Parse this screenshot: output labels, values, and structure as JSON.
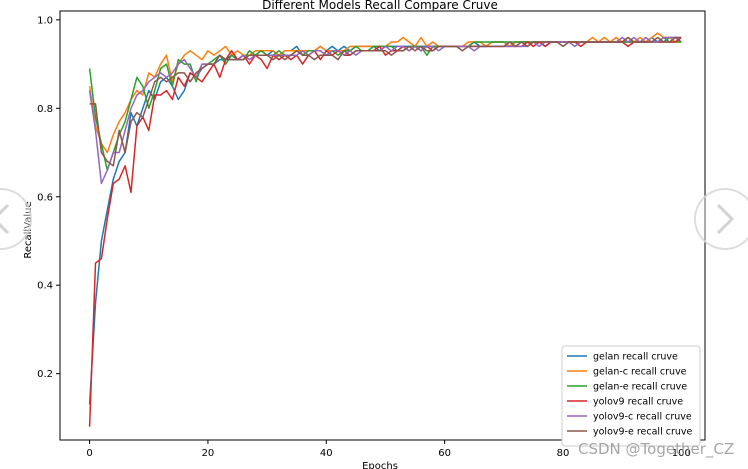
{
  "watermark": "CSDN @Together_CZ",
  "colors": {
    "gelan": "#1f77b4",
    "gelan_c": "#ff7f0e",
    "gelan_e": "#2ca02c",
    "yolov9": "#d62728",
    "yolov9_c": "#9467bd",
    "yolov9_e": "#8c564b"
  },
  "icons": [
    "chevron-left-icon",
    "chevron-right-icon"
  ],
  "chart_data": {
    "type": "line",
    "title": "Different Models Recall Compare Cruve",
    "xlabel": "Epochs",
    "ylabel": "RecallValue",
    "xlim": [
      -5,
      104
    ],
    "ylim": [
      0.05,
      1.02
    ],
    "xticks": [
      0,
      20,
      40,
      60,
      80,
      100
    ],
    "yticks": [
      0.2,
      0.4,
      0.6,
      0.8,
      1.0
    ],
    "grid": false,
    "legend_position": "lower-right",
    "series": [
      {
        "name": "gelan recall cruve",
        "color": "#1f77b4",
        "values": [
          0.13,
          0.36,
          0.5,
          0.57,
          0.64,
          0.68,
          0.7,
          0.79,
          0.76,
          0.8,
          0.84,
          0.82,
          0.86,
          0.87,
          0.85,
          0.82,
          0.84,
          0.88,
          0.87,
          0.89,
          0.9,
          0.9,
          0.91,
          0.91,
          0.92,
          0.91,
          0.92,
          0.92,
          0.92,
          0.93,
          0.92,
          0.93,
          0.92,
          0.93,
          0.93,
          0.94,
          0.92,
          0.93,
          0.93,
          0.94,
          0.93,
          0.94,
          0.93,
          0.94,
          0.93,
          0.94,
          0.94,
          0.94,
          0.94,
          0.93,
          0.94,
          0.94,
          0.94,
          0.94,
          0.94,
          0.94,
          0.94,
          0.94,
          0.94,
          0.94,
          0.94,
          0.94,
          0.94,
          0.94,
          0.94,
          0.95,
          0.94,
          0.94,
          0.95,
          0.95,
          0.95,
          0.94,
          0.95,
          0.95,
          0.95,
          0.95,
          0.95,
          0.94,
          0.95,
          0.95,
          0.95,
          0.95,
          0.95,
          0.95,
          0.95,
          0.95,
          0.95,
          0.95,
          0.95,
          0.95,
          0.95,
          0.95,
          0.95,
          0.95,
          0.95,
          0.96,
          0.95,
          0.95,
          0.96,
          0.96,
          0.95
        ]
      },
      {
        "name": "gelan-c recall cruve",
        "color": "#ff7f0e",
        "values": [
          0.85,
          0.76,
          0.72,
          0.7,
          0.74,
          0.77,
          0.79,
          0.82,
          0.84,
          0.83,
          0.88,
          0.87,
          0.9,
          0.92,
          0.86,
          0.9,
          0.92,
          0.93,
          0.92,
          0.91,
          0.93,
          0.92,
          0.93,
          0.94,
          0.92,
          0.93,
          0.92,
          0.92,
          0.93,
          0.93,
          0.93,
          0.93,
          0.92,
          0.93,
          0.93,
          0.93,
          0.93,
          0.93,
          0.93,
          0.94,
          0.93,
          0.93,
          0.93,
          0.93,
          0.94,
          0.94,
          0.94,
          0.94,
          0.94,
          0.94,
          0.94,
          0.95,
          0.95,
          0.96,
          0.95,
          0.94,
          0.96,
          0.94,
          0.95,
          0.94,
          0.94,
          0.94,
          0.94,
          0.94,
          0.95,
          0.95,
          0.95,
          0.94,
          0.95,
          0.95,
          0.95,
          0.94,
          0.95,
          0.95,
          0.95,
          0.95,
          0.95,
          0.95,
          0.95,
          0.95,
          0.95,
          0.95,
          0.95,
          0.95,
          0.95,
          0.96,
          0.95,
          0.96,
          0.95,
          0.96,
          0.95,
          0.96,
          0.95,
          0.96,
          0.95,
          0.96,
          0.97,
          0.96,
          0.96,
          0.95,
          0.95
        ]
      },
      {
        "name": "gelan-e recall cruve",
        "color": "#2ca02c",
        "values": [
          0.89,
          0.78,
          0.72,
          0.66,
          0.7,
          0.74,
          0.77,
          0.82,
          0.87,
          0.85,
          0.8,
          0.84,
          0.89,
          0.9,
          0.85,
          0.91,
          0.9,
          0.9,
          0.86,
          0.9,
          0.9,
          0.91,
          0.92,
          0.9,
          0.92,
          0.91,
          0.91,
          0.93,
          0.92,
          0.93,
          0.92,
          0.92,
          0.93,
          0.92,
          0.92,
          0.93,
          0.92,
          0.93,
          0.93,
          0.93,
          0.92,
          0.93,
          0.92,
          0.93,
          0.93,
          0.94,
          0.93,
          0.93,
          0.94,
          0.94,
          0.94,
          0.94,
          0.93,
          0.93,
          0.94,
          0.94,
          0.94,
          0.92,
          0.94,
          0.94,
          0.94,
          0.94,
          0.94,
          0.94,
          0.94,
          0.95,
          0.95,
          0.95,
          0.95,
          0.95,
          0.95,
          0.95,
          0.95,
          0.95,
          0.95,
          0.95,
          0.95,
          0.95,
          0.95,
          0.95,
          0.95,
          0.95,
          0.95,
          0.95,
          0.95,
          0.95,
          0.95,
          0.95,
          0.95,
          0.95,
          0.95,
          0.95,
          0.95,
          0.95,
          0.95,
          0.95,
          0.95,
          0.96,
          0.95,
          0.95,
          0.95
        ]
      },
      {
        "name": "yolov9 recall cruve",
        "color": "#d62728",
        "values": [
          0.08,
          0.45,
          0.46,
          0.55,
          0.63,
          0.64,
          0.67,
          0.61,
          0.76,
          0.78,
          0.75,
          0.83,
          0.83,
          0.84,
          0.82,
          0.87,
          0.85,
          0.88,
          0.87,
          0.86,
          0.88,
          0.9,
          0.87,
          0.91,
          0.93,
          0.91,
          0.92,
          0.9,
          0.92,
          0.91,
          0.89,
          0.92,
          0.91,
          0.92,
          0.91,
          0.92,
          0.9,
          0.92,
          0.93,
          0.91,
          0.93,
          0.92,
          0.93,
          0.92,
          0.92,
          0.93,
          0.93,
          0.93,
          0.93,
          0.94,
          0.92,
          0.93,
          0.93,
          0.94,
          0.93,
          0.94,
          0.93,
          0.94,
          0.93,
          0.94,
          0.94,
          0.94,
          0.94,
          0.94,
          0.94,
          0.94,
          0.94,
          0.94,
          0.94,
          0.94,
          0.94,
          0.94,
          0.94,
          0.94,
          0.95,
          0.94,
          0.95,
          0.94,
          0.95,
          0.95,
          0.95,
          0.95,
          0.95,
          0.94,
          0.95,
          0.95,
          0.95,
          0.95,
          0.95,
          0.95,
          0.95,
          0.94,
          0.95,
          0.95,
          0.95,
          0.95,
          0.95,
          0.95,
          0.95,
          0.95,
          0.96
        ]
      },
      {
        "name": "yolov9-c recall cruve",
        "color": "#9467bd",
        "values": [
          0.84,
          0.75,
          0.63,
          0.66,
          0.7,
          0.7,
          0.75,
          0.8,
          0.83,
          0.84,
          0.86,
          0.87,
          0.88,
          0.87,
          0.88,
          0.9,
          0.91,
          0.89,
          0.87,
          0.9,
          0.9,
          0.9,
          0.92,
          0.91,
          0.91,
          0.91,
          0.92,
          0.91,
          0.92,
          0.92,
          0.92,
          0.92,
          0.92,
          0.92,
          0.92,
          0.92,
          0.93,
          0.92,
          0.93,
          0.93,
          0.92,
          0.93,
          0.93,
          0.92,
          0.93,
          0.92,
          0.93,
          0.93,
          0.93,
          0.93,
          0.94,
          0.93,
          0.94,
          0.94,
          0.93,
          0.94,
          0.93,
          0.94,
          0.94,
          0.93,
          0.94,
          0.94,
          0.94,
          0.94,
          0.94,
          0.93,
          0.94,
          0.94,
          0.94,
          0.94,
          0.94,
          0.94,
          0.94,
          0.94,
          0.94,
          0.95,
          0.94,
          0.95,
          0.95,
          0.95,
          0.95,
          0.95,
          0.94,
          0.95,
          0.95,
          0.95,
          0.95,
          0.95,
          0.95,
          0.95,
          0.96,
          0.95,
          0.96,
          0.95,
          0.96,
          0.95,
          0.95,
          0.96,
          0.96,
          0.96,
          0.96
        ]
      },
      {
        "name": "yolov9-e recall cruve",
        "color": "#8c564b",
        "values": [
          0.81,
          0.81,
          0.7,
          0.68,
          0.67,
          0.75,
          0.7,
          0.77,
          0.79,
          0.78,
          0.82,
          0.86,
          0.87,
          0.86,
          0.87,
          0.88,
          0.88,
          0.86,
          0.88,
          0.89,
          0.9,
          0.9,
          0.92,
          0.91,
          0.91,
          0.91,
          0.91,
          0.92,
          0.92,
          0.92,
          0.92,
          0.91,
          0.92,
          0.91,
          0.92,
          0.93,
          0.92,
          0.92,
          0.91,
          0.92,
          0.92,
          0.92,
          0.91,
          0.93,
          0.92,
          0.93,
          0.93,
          0.93,
          0.93,
          0.93,
          0.93,
          0.92,
          0.93,
          0.93,
          0.94,
          0.93,
          0.94,
          0.93,
          0.93,
          0.94,
          0.94,
          0.94,
          0.94,
          0.93,
          0.94,
          0.94,
          0.94,
          0.94,
          0.94,
          0.94,
          0.94,
          0.95,
          0.94,
          0.95,
          0.94,
          0.95,
          0.95,
          0.95,
          0.95,
          0.95,
          0.94,
          0.95,
          0.95,
          0.95,
          0.95,
          0.95,
          0.95,
          0.95,
          0.95,
          0.95,
          0.95,
          0.96,
          0.95,
          0.95,
          0.95,
          0.95,
          0.96,
          0.95,
          0.95,
          0.96,
          0.96
        ]
      }
    ]
  }
}
